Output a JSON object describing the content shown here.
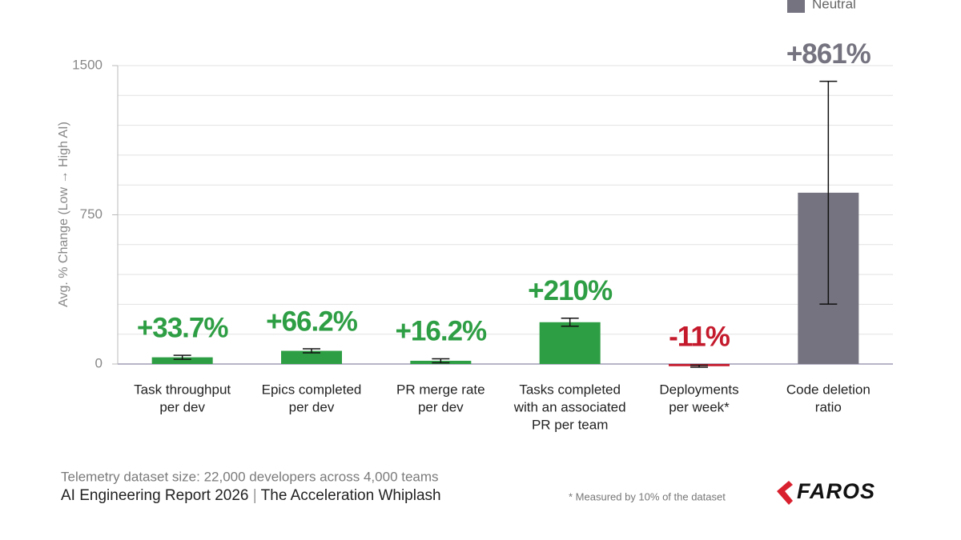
{
  "chart_data": {
    "type": "bar",
    "y_label": "Avg. % Change (Low → High AI)",
    "categories": [
      [
        "Task throughput",
        "per dev"
      ],
      [
        "Epics completed",
        "per dev"
      ],
      [
        "PR merge rate",
        "per dev"
      ],
      [
        "Tasks completed",
        "with an associated",
        "PR per team"
      ],
      [
        "Deployments",
        "per week*"
      ],
      [
        "Code deletion",
        "ratio"
      ]
    ],
    "values": [
      33.7,
      66.2,
      16.2,
      210,
      -11,
      861
    ],
    "value_labels": [
      "+33.7%",
      "+66.2%",
      "+16.2%",
      "+210%",
      "-11%",
      "+861%"
    ],
    "errors": [
      10,
      10,
      10,
      20,
      5,
      560
    ],
    "colors": [
      "#2e9e44",
      "#2e9e44",
      "#2e9e44",
      "#2e9e44",
      "#c41a2c",
      "#75737f"
    ],
    "legend": [
      {
        "name": "Neutral",
        "color": "#75737f"
      }
    ],
    "ylim": [
      0,
      1500
    ],
    "yticks": [
      0,
      750,
      1500
    ],
    "grid": true,
    "grid_lines": [
      150,
      300,
      450,
      600,
      750,
      900,
      1050,
      1200,
      1350,
      1500
    ]
  },
  "footer": {
    "dataset": "Telemetry dataset size: 22,000 developers across 4,000 teams",
    "report": "AI Engineering Report 2026",
    "separator": "|",
    "subtitle": "The Acceleration Whiplash",
    "note": "* Measured by 10% of the dataset",
    "logo": "FAROS"
  }
}
